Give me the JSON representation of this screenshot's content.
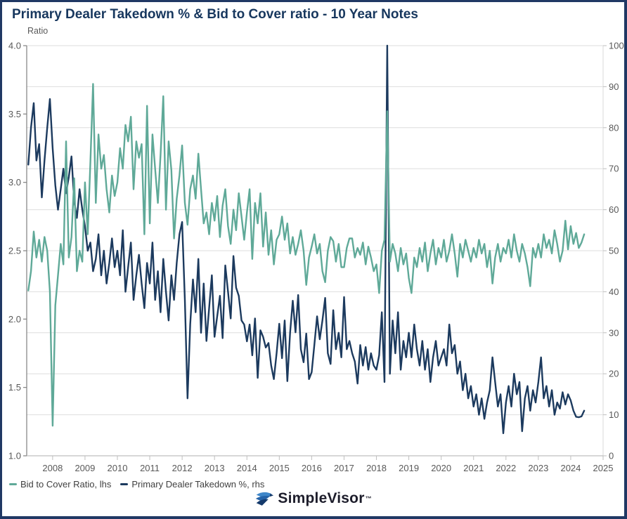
{
  "title": "Primary Dealer Takedown % & Bid to Cover ratio - 10 Year Notes",
  "footer": {
    "brand": "SimpleVisor",
    "trademark": "™"
  },
  "colors": {
    "title": "#17375E",
    "teal_series": "#5FA998",
    "navy_series": "#1C3A5E",
    "gridline": "#DEDEDE",
    "axis_left_line": "#808080",
    "axis_bottom_line": "#BFBFBF",
    "axis_right_line": "#D9D9D9",
    "tick_label": "#595959",
    "legend_text": "#404040",
    "border": "#203864"
  },
  "chart_data": {
    "type": "line",
    "title": "Primary Dealer Takedown % & Bid to Cover ratio - 10 Year Notes",
    "left_axis": {
      "label": "Ratio",
      "min": 1.0,
      "max": 4.0,
      "ticks": [
        "4.0",
        "3.5",
        "3.0",
        "2.5",
        "2.0",
        "1.5",
        "1.0"
      ]
    },
    "right_axis": {
      "min": 0,
      "max": 100,
      "ticks": [
        100,
        90,
        80,
        70,
        60,
        50,
        40,
        30,
        20,
        10,
        0
      ]
    },
    "x_axis": {
      "ticks": [
        2008,
        2009,
        2010,
        2011,
        2012,
        2013,
        2014,
        2015,
        2016,
        2017,
        2018,
        2019,
        2020,
        2021,
        2022,
        2023,
        2024,
        2025
      ],
      "domain": [
        2007.2,
        2025.0
      ]
    },
    "grid": "horizontal lines at right-axis steps of 10",
    "legend_position": "bottom-left",
    "series": [
      {
        "id": "bid-to-cover",
        "name": "Bid to Cover Ratio, lhs",
        "axis": "left",
        "color": "#5FA998",
        "start": 2007.25,
        "step_years": 0.0833333,
        "values": [
          2.21,
          2.35,
          2.64,
          2.45,
          2.58,
          2.42,
          2.6,
          2.5,
          2.2,
          1.22,
          2.1,
          2.32,
          2.55,
          2.4,
          3.3,
          2.45,
          2.6,
          3.03,
          2.35,
          2.5,
          2.42,
          3.0,
          2.62,
          3.15,
          3.72,
          2.85,
          3.35,
          3.1,
          3.2,
          2.95,
          2.78,
          3.05,
          2.9,
          3.0,
          3.25,
          3.1,
          3.42,
          3.3,
          3.48,
          2.95,
          3.3,
          3.18,
          3.28,
          2.62,
          3.56,
          2.7,
          3.35,
          3.1,
          2.85,
          3.2,
          3.63,
          2.8,
          3.3,
          3.09,
          2.59,
          2.88,
          3.05,
          3.27,
          2.85,
          2.69,
          2.95,
          3.05,
          2.88,
          3.21,
          2.95,
          2.7,
          2.78,
          2.62,
          2.85,
          2.72,
          2.9,
          2.6,
          2.83,
          2.95,
          2.68,
          2.55,
          2.8,
          2.65,
          2.92,
          2.75,
          2.58,
          2.78,
          2.95,
          2.44,
          2.85,
          2.7,
          2.92,
          2.53,
          2.78,
          2.47,
          2.65,
          2.4,
          2.58,
          2.62,
          2.75,
          2.58,
          2.7,
          2.48,
          2.6,
          2.47,
          2.55,
          2.65,
          2.5,
          2.25,
          2.45,
          2.53,
          2.62,
          2.48,
          2.55,
          2.35,
          2.27,
          2.5,
          2.6,
          2.57,
          2.42,
          2.55,
          2.38,
          2.38,
          2.52,
          2.59,
          2.59,
          2.45,
          2.52,
          2.47,
          2.56,
          2.4,
          2.53,
          2.45,
          2.35,
          2.4,
          2.19,
          2.5,
          2.58,
          3.52,
          2.42,
          2.55,
          2.48,
          2.35,
          2.52,
          2.4,
          2.48,
          2.3,
          2.19,
          2.45,
          2.38,
          2.52,
          2.42,
          2.56,
          2.35,
          2.48,
          2.58,
          2.4,
          2.52,
          2.45,
          2.58,
          2.42,
          2.5,
          2.62,
          2.48,
          2.31,
          2.55,
          2.45,
          2.58,
          2.5,
          2.42,
          2.52,
          2.45,
          2.58,
          2.48,
          2.55,
          2.38,
          2.5,
          2.26,
          2.45,
          2.55,
          2.42,
          2.52,
          2.48,
          2.58,
          2.45,
          2.62,
          2.5,
          2.42,
          2.55,
          2.48,
          2.38,
          2.24,
          2.52,
          2.45,
          2.55,
          2.45,
          2.62,
          2.52,
          2.58,
          2.48,
          2.65,
          2.55,
          2.42,
          2.5,
          2.72,
          2.51,
          2.68,
          2.55,
          2.63,
          2.52,
          2.56,
          2.62
        ]
      },
      {
        "id": "primary-dealer-takedown",
        "name": "Primary Dealer Takedown %, rhs",
        "axis": "right",
        "color": "#1C3A5E",
        "start": 2007.25,
        "step_years": 0.0833333,
        "values": [
          71,
          80,
          86,
          72,
          76,
          63,
          72,
          80,
          87,
          75,
          66,
          60,
          65,
          70,
          64,
          68,
          73,
          62,
          58,
          65,
          60,
          56,
          50,
          52,
          45,
          48,
          54,
          44,
          50,
          42,
          47,
          53,
          46,
          50,
          44,
          55,
          40,
          46,
          52,
          38,
          44,
          49,
          42,
          36,
          47,
          42,
          52,
          38,
          45,
          35,
          48,
          40,
          33,
          44,
          38,
          47,
          54,
          57,
          38,
          14,
          32,
          43,
          35,
          48,
          30,
          42,
          28,
          36,
          44,
          29,
          34,
          39,
          28.7,
          46.4,
          40,
          33.5,
          48.7,
          41,
          39,
          33,
          32,
          27.9,
          32,
          24.5,
          33.5,
          19,
          30.6,
          29,
          26.4,
          27.5,
          22,
          18.7,
          25,
          32.2,
          23.8,
          33,
          18.2,
          30,
          37.8,
          30.1,
          39.2,
          26,
          22.8,
          29.8,
          18.7,
          20.4,
          27,
          34,
          28.4,
          33,
          38.5,
          25,
          22.4,
          35.5,
          26,
          30,
          24,
          38.7,
          26,
          28,
          25,
          23,
          17.6,
          27,
          22,
          26.5,
          21,
          25,
          22,
          21,
          24.5,
          35,
          18,
          100,
          20,
          33,
          25,
          35,
          21,
          28,
          24,
          30,
          24,
          32,
          26,
          22,
          28,
          21,
          26,
          18,
          24,
          28,
          22,
          24,
          26,
          22,
          32,
          25,
          27,
          20,
          23,
          16,
          20,
          14,
          17,
          12,
          15,
          10,
          14,
          9,
          13,
          16,
          24,
          18,
          12,
          15,
          5.5,
          13,
          17,
          12,
          20,
          15,
          18,
          6,
          14,
          17,
          11,
          16,
          13,
          18,
          24,
          14,
          17,
          12,
          16,
          10,
          13,
          11.5,
          15.5,
          12.5,
          15,
          13.5,
          11,
          9.5,
          9.4,
          9.6,
          11
        ]
      }
    ]
  }
}
